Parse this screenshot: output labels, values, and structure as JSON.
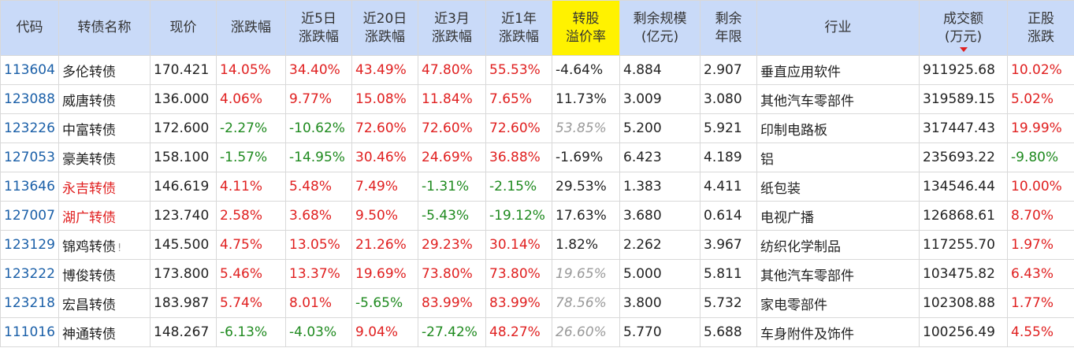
{
  "columns": [
    {
      "key": "code",
      "lines": [
        "代码"
      ]
    },
    {
      "key": "name",
      "lines": [
        "转债名称"
      ]
    },
    {
      "key": "price",
      "lines": [
        "现价"
      ]
    },
    {
      "key": "chg",
      "lines": [
        "涨跌幅"
      ]
    },
    {
      "key": "chg5d",
      "lines": [
        "近5日",
        "涨跌幅"
      ]
    },
    {
      "key": "chg20d",
      "lines": [
        "近20日",
        "涨跌幅"
      ]
    },
    {
      "key": "chg3m",
      "lines": [
        "近3月",
        "涨跌幅"
      ]
    },
    {
      "key": "chg1y",
      "lines": [
        "近1年",
        "涨跌幅"
      ]
    },
    {
      "key": "premium",
      "lines": [
        "转股",
        "溢价率"
      ],
      "highlight": true
    },
    {
      "key": "scale",
      "lines": [
        "剩余规模",
        "(亿元)"
      ]
    },
    {
      "key": "years",
      "lines": [
        "剩余",
        "年限"
      ]
    },
    {
      "key": "industry",
      "lines": [
        "行业"
      ]
    },
    {
      "key": "volume",
      "lines": [
        "成交额",
        "(万元)"
      ],
      "sorted": true
    },
    {
      "key": "stock_chg",
      "lines": [
        "正股",
        "涨跌"
      ]
    }
  ],
  "rows": [
    {
      "code": "113604",
      "name": "多伦转债",
      "name_color": "normal",
      "price": "170.421",
      "chg": "14.05%",
      "chg5d": "34.40%",
      "chg20d": "43.49%",
      "chg3m": "47.80%",
      "chg1y": "55.53%",
      "premium": "-4.64%",
      "premium_style": "normal",
      "scale": "4.884",
      "years": "2.907",
      "industry": "垂直应用软件",
      "volume": "911925.68",
      "stock_chg": "10.02%"
    },
    {
      "code": "123088",
      "name": "威唐转债",
      "name_color": "normal",
      "price": "136.000",
      "chg": "4.06%",
      "chg5d": "9.77%",
      "chg20d": "15.08%",
      "chg3m": "11.84%",
      "chg1y": "7.65%",
      "premium": "11.73%",
      "premium_style": "normal",
      "scale": "3.009",
      "years": "3.080",
      "industry": "其他汽车零部件",
      "volume": "319589.15",
      "stock_chg": "5.02%"
    },
    {
      "code": "123226",
      "name": "中富转债",
      "name_color": "normal",
      "price": "172.600",
      "chg": "-2.27%",
      "chg5d": "-10.62%",
      "chg20d": "72.60%",
      "chg3m": "72.60%",
      "chg1y": "72.60%",
      "premium": "53.85%",
      "premium_style": "gray",
      "scale": "5.200",
      "years": "5.921",
      "industry": "印制电路板",
      "volume": "317447.43",
      "stock_chg": "19.99%"
    },
    {
      "code": "127053",
      "name": "豪美转债",
      "name_color": "normal",
      "price": "158.100",
      "chg": "-1.57%",
      "chg5d": "-14.95%",
      "chg20d": "30.46%",
      "chg3m": "24.69%",
      "chg1y": "36.88%",
      "premium": "-1.69%",
      "premium_style": "normal",
      "scale": "6.423",
      "years": "4.189",
      "industry": "铝",
      "volume": "235693.22",
      "stock_chg": "-9.80%"
    },
    {
      "code": "113646",
      "name": "永吉转债",
      "name_color": "red",
      "price": "146.619",
      "chg": "4.11%",
      "chg5d": "5.48%",
      "chg20d": "7.49%",
      "chg3m": "-1.31%",
      "chg1y": "-2.15%",
      "premium": "29.53%",
      "premium_style": "normal",
      "scale": "1.383",
      "years": "4.411",
      "industry": "纸包装",
      "volume": "134546.44",
      "stock_chg": "10.00%"
    },
    {
      "code": "127007",
      "name": "湖广转债",
      "name_color": "red",
      "price": "123.740",
      "chg": "2.58%",
      "chg5d": "3.68%",
      "chg20d": "9.50%",
      "chg3m": "-5.43%",
      "chg1y": "-19.12%",
      "premium": "17.63%",
      "premium_style": "normal",
      "scale": "3.680",
      "years": "0.614",
      "industry": "电视广播",
      "volume": "126868.61",
      "stock_chg": "8.70%"
    },
    {
      "code": "123129",
      "name": "锦鸡转债",
      "name_color": "normal",
      "name_mark": "!",
      "price": "145.500",
      "chg": "4.75%",
      "chg5d": "13.05%",
      "chg20d": "21.26%",
      "chg3m": "29.23%",
      "chg1y": "30.14%",
      "premium": "1.82%",
      "premium_style": "normal",
      "scale": "2.262",
      "years": "3.967",
      "industry": "纺织化学制品",
      "volume": "117255.70",
      "stock_chg": "1.97%"
    },
    {
      "code": "123222",
      "name": "博俊转债",
      "name_color": "normal",
      "price": "173.800",
      "chg": "5.46%",
      "chg5d": "13.37%",
      "chg20d": "19.69%",
      "chg3m": "73.80%",
      "chg1y": "73.80%",
      "premium": "19.65%",
      "premium_style": "gray",
      "scale": "5.000",
      "years": "5.811",
      "industry": "其他汽车零部件",
      "volume": "103475.82",
      "stock_chg": "6.43%"
    },
    {
      "code": "123218",
      "name": "宏昌转债",
      "name_color": "normal",
      "price": "183.987",
      "chg": "5.74%",
      "chg5d": "8.01%",
      "chg20d": "-5.65%",
      "chg3m": "83.99%",
      "chg1y": "83.99%",
      "premium": "78.56%",
      "premium_style": "gray",
      "scale": "3.800",
      "years": "5.732",
      "industry": "家电零部件",
      "volume": "102308.88",
      "stock_chg": "1.77%"
    },
    {
      "code": "111016",
      "name": "神通转债",
      "name_color": "normal",
      "price": "148.267",
      "chg": "-6.13%",
      "chg5d": "-4.03%",
      "chg20d": "9.04%",
      "chg3m": "-27.42%",
      "chg1y": "48.27%",
      "premium": "26.60%",
      "premium_style": "gray",
      "scale": "5.770",
      "years": "5.688",
      "industry": "车身附件及饰件",
      "volume": "100256.49",
      "stock_chg": "4.55%"
    }
  ],
  "colors": {
    "header_bg": "#c9daf8",
    "highlight": "#fff200",
    "up": "#e02020",
    "down": "#1f8a1f",
    "code": "#1a5fa8"
  }
}
